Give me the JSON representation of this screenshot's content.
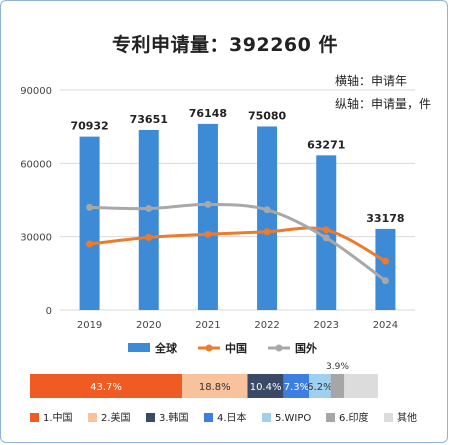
{
  "chart_data": {
    "type": "bar",
    "title": "专利申请量：392260 件",
    "axis_notes": [
      "横轴：申请年",
      "纵轴：申请量，件"
    ],
    "categories": [
      "2019",
      "2020",
      "2021",
      "2022",
      "2023",
      "2024"
    ],
    "ylim": [
      0,
      90000
    ],
    "yticks": [
      0,
      30000,
      60000,
      90000
    ],
    "grid": true,
    "legend_position": "bottom",
    "series": [
      {
        "name": "全球",
        "kind": "bar",
        "color": "#3d8bd6",
        "values": [
          70932,
          73651,
          76148,
          75080,
          63271,
          33178
        ]
      },
      {
        "name": "中国",
        "kind": "line",
        "color": "#ee7b2c",
        "values": [
          27000,
          29700,
          31000,
          32000,
          32800,
          20000
        ]
      },
      {
        "name": "国外",
        "kind": "line",
        "color": "#a8a8a8",
        "values": [
          42000,
          41500,
          43200,
          41000,
          29500,
          12000
        ]
      }
    ]
  },
  "share_bar": {
    "segments": [
      {
        "label": "1.中国",
        "value": 43.7,
        "text": "43.7%",
        "color": "#f05a23",
        "text_color": "#ffffff"
      },
      {
        "label": "2.美国",
        "value": 18.8,
        "text": "18.8%",
        "color": "#f8c29c",
        "text_color": "#333333"
      },
      {
        "label": "3.韩国",
        "value": 10.4,
        "text": "10.4%",
        "color": "#3a4a66",
        "text_color": "#ffffff"
      },
      {
        "label": "4.日本",
        "value": 7.3,
        "text": "7.3%",
        "color": "#3c7fe0",
        "text_color": "#ffffff"
      },
      {
        "label": "5.WIPO",
        "value": 6.2,
        "text": "6.2%",
        "color": "#9fd0ef",
        "text_color": "#333333"
      },
      {
        "label": "6.印度",
        "value": 3.9,
        "text": "3.9%",
        "color": "#a6a6a6",
        "text_color": "#333333"
      },
      {
        "label": "其他",
        "value": 9.7,
        "text": "",
        "color": "#dcdcdc",
        "text_color": "#333333"
      }
    ]
  }
}
